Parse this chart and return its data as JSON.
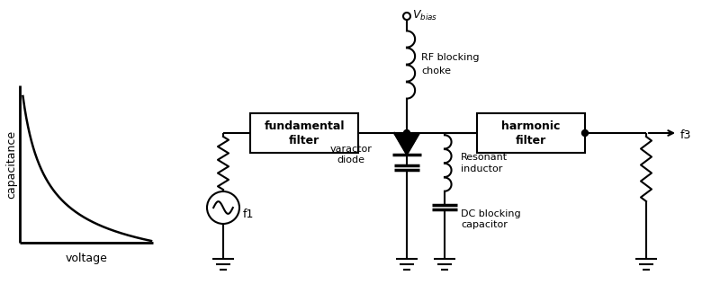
{
  "bg_color": "#ffffff",
  "line_color": "#000000",
  "graph": {
    "x_label": "voltage",
    "y_label": "capacitance"
  },
  "labels": {
    "vbias": "V",
    "vbias_sub": "bias",
    "rf_choke": [
      "RF blocking",
      "choke"
    ],
    "fund_filter": [
      "fundamental",
      "filter"
    ],
    "harm_filter": [
      "harmonic",
      "filter"
    ],
    "varactor": [
      "varactor",
      "diode"
    ],
    "resonant": [
      "Resonant",
      "inductor"
    ],
    "dc_block": [
      "DC blocking",
      "capacitor"
    ],
    "f1": "f1",
    "f3": "f3"
  }
}
